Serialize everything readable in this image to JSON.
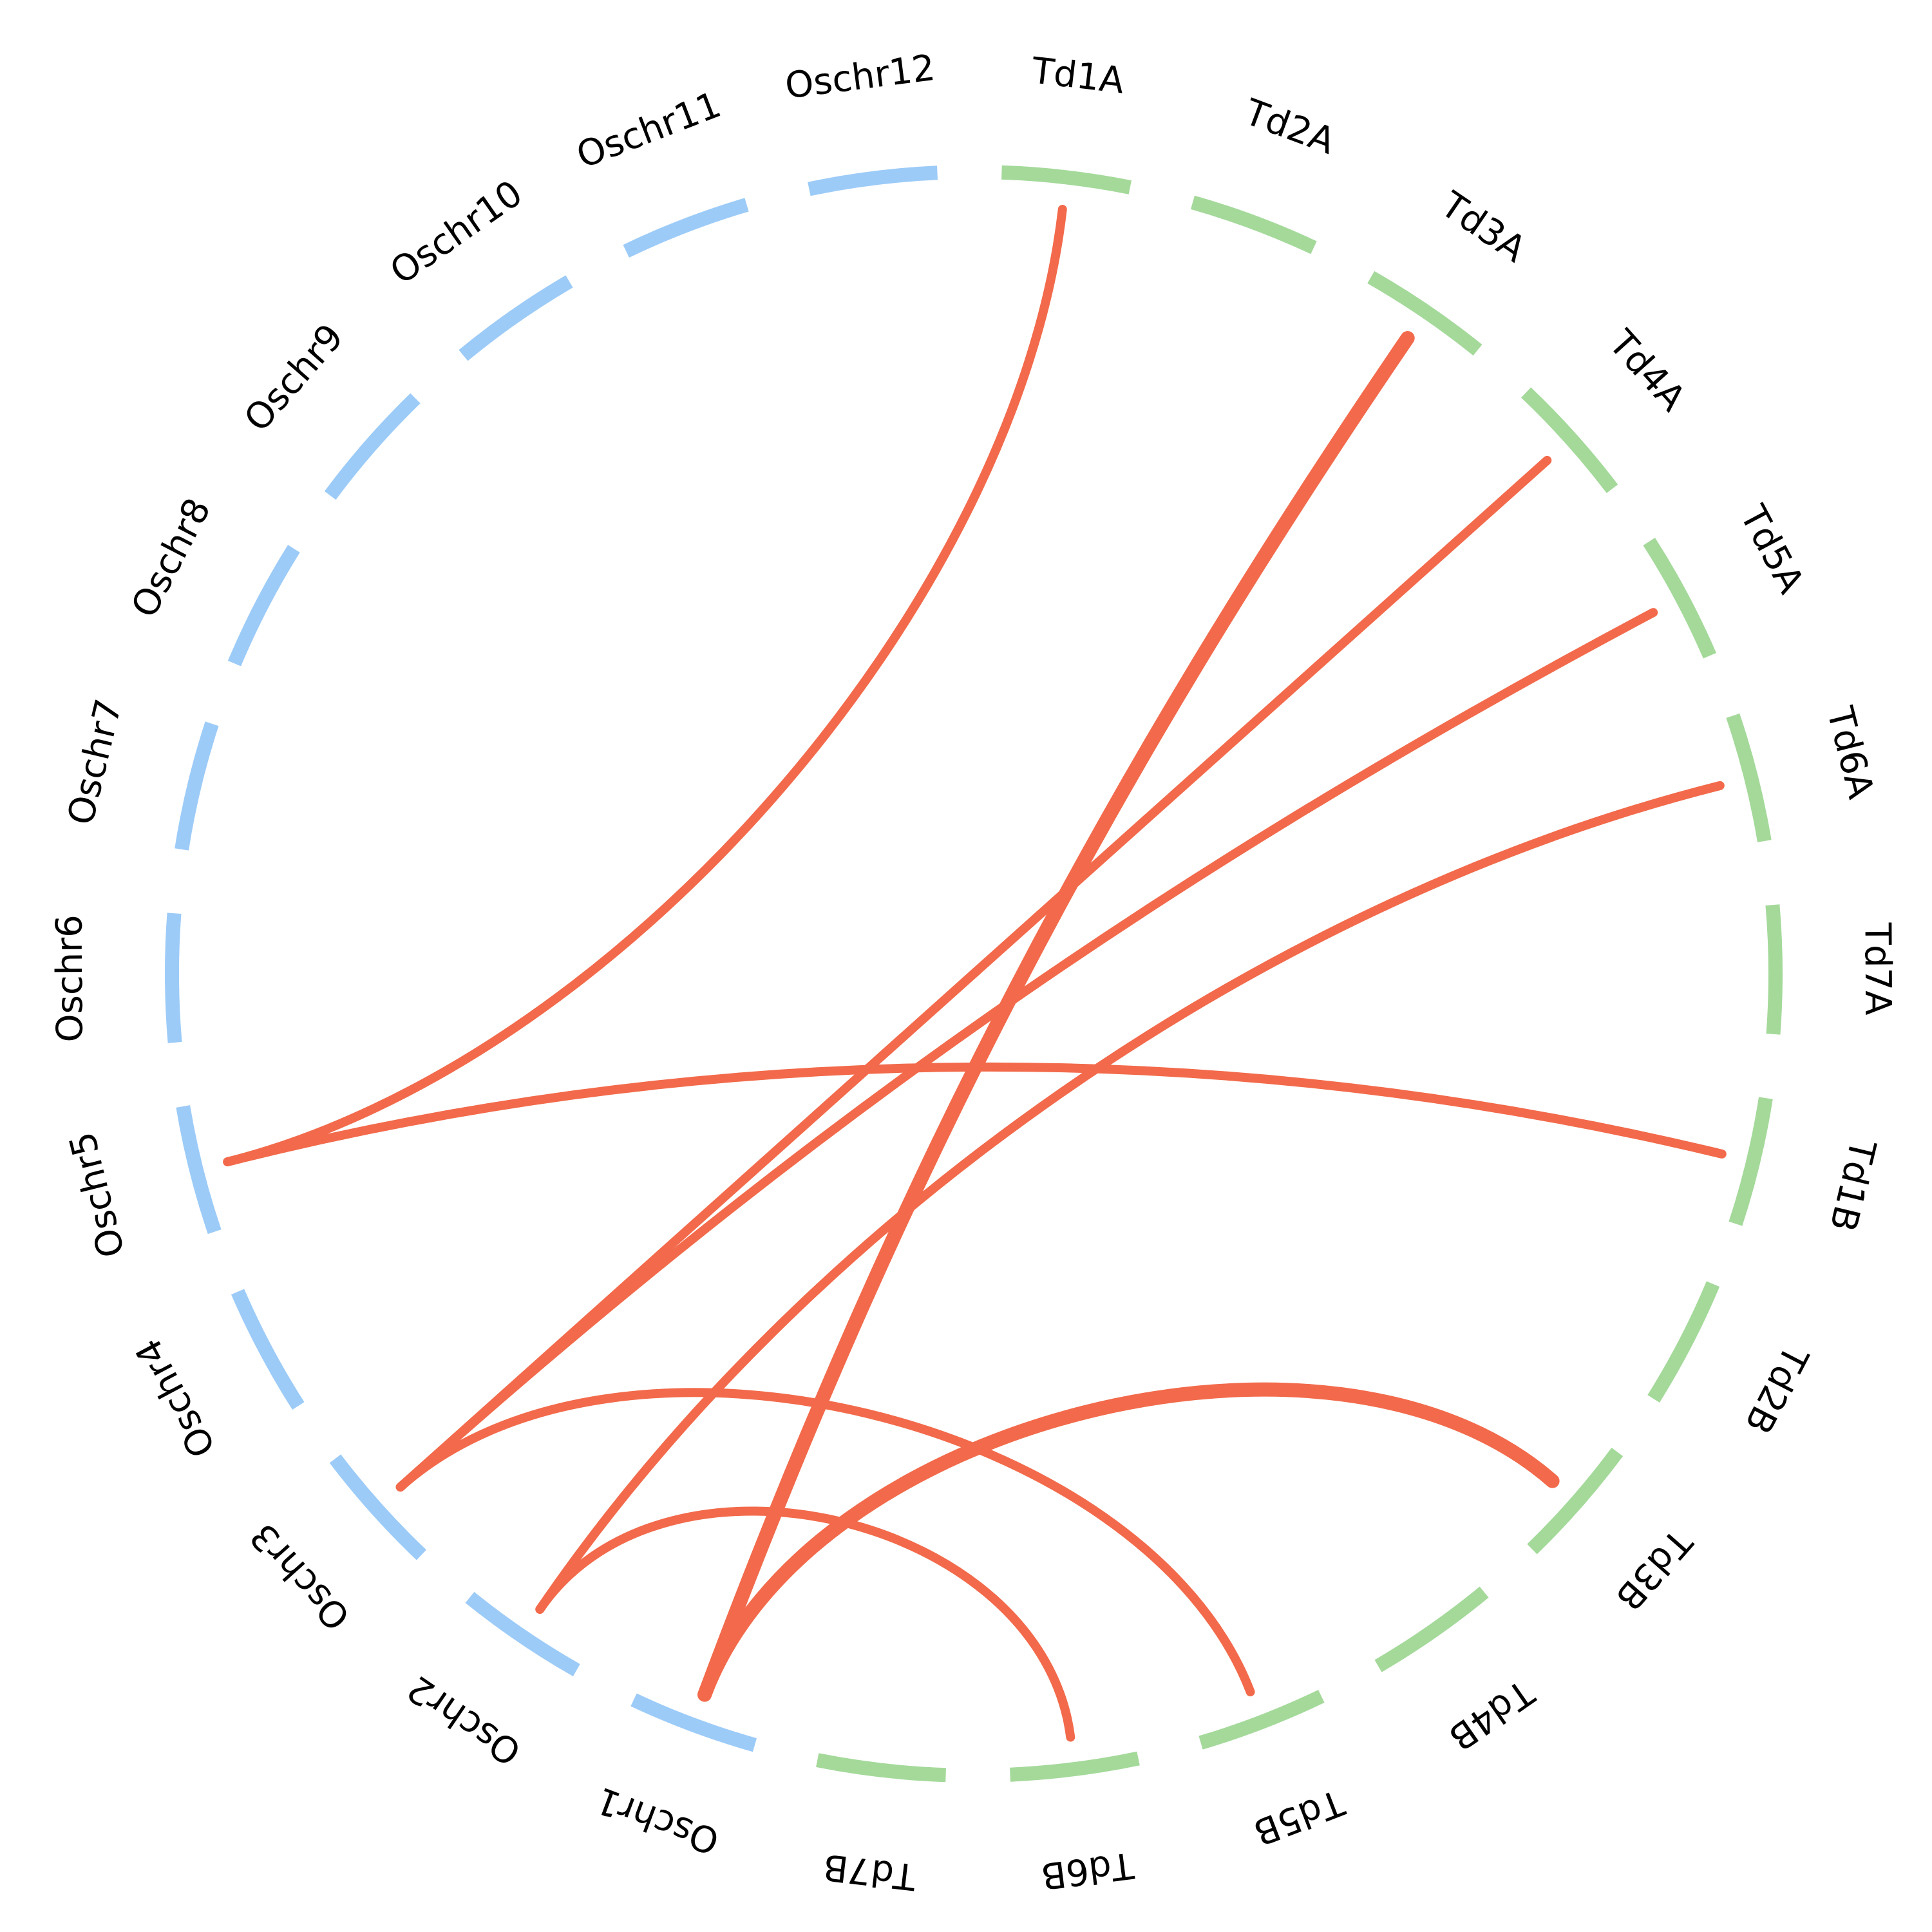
{
  "colors": {
    "rice": "#9ccbf8",
    "wheat": "#a4d99a",
    "link": "#f26a4b",
    "label": "#000000"
  },
  "segments": [
    {
      "name": "Td1A",
      "group": "wheat"
    },
    {
      "name": "Td2A",
      "group": "wheat"
    },
    {
      "name": "Td3A",
      "group": "wheat"
    },
    {
      "name": "Td4A",
      "group": "wheat"
    },
    {
      "name": "Td5A",
      "group": "wheat"
    },
    {
      "name": "Td6A",
      "group": "wheat"
    },
    {
      "name": "Td7A",
      "group": "wheat"
    },
    {
      "name": "Td1B",
      "group": "wheat"
    },
    {
      "name": "Td2B",
      "group": "wheat"
    },
    {
      "name": "Td3B",
      "group": "wheat"
    },
    {
      "name": "Td4B",
      "group": "wheat"
    },
    {
      "name": "Td5B",
      "group": "wheat"
    },
    {
      "name": "Td6B",
      "group": "wheat"
    },
    {
      "name": "Td7B",
      "group": "wheat"
    },
    {
      "name": "Oschr1",
      "group": "rice"
    },
    {
      "name": "Oschr2",
      "group": "rice"
    },
    {
      "name": "Oschr3",
      "group": "rice"
    },
    {
      "name": "Oschr4",
      "group": "rice"
    },
    {
      "name": "Oschr5",
      "group": "rice"
    },
    {
      "name": "Oschr6",
      "group": "rice"
    },
    {
      "name": "Oschr7",
      "group": "rice"
    },
    {
      "name": "Oschr8",
      "group": "rice"
    },
    {
      "name": "Oschr9",
      "group": "rice"
    },
    {
      "name": "Oschr10",
      "group": "rice"
    },
    {
      "name": "Oschr11",
      "group": "rice"
    },
    {
      "name": "Oschr12",
      "group": "rice"
    }
  ],
  "links": [
    {
      "from": "Oschr5",
      "to": "Td1A"
    },
    {
      "from": "Oschr5",
      "to": "Td1B"
    },
    {
      "from": "Oschr3",
      "to": "Td4A"
    },
    {
      "from": "Oschr3",
      "to": "Td5A"
    },
    {
      "from": "Oschr3",
      "to": "Td5B"
    },
    {
      "from": "Oschr2",
      "to": "Td6A"
    },
    {
      "from": "Oschr2",
      "to": "Td6B"
    },
    {
      "from": "Oschr1",
      "to": "Td3A"
    },
    {
      "from": "Oschr1",
      "to": "Td3B"
    }
  ]
}
